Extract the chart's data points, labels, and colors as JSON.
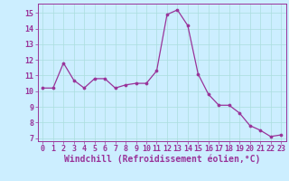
{
  "x": [
    0,
    1,
    2,
    3,
    4,
    5,
    6,
    7,
    8,
    9,
    10,
    11,
    12,
    13,
    14,
    15,
    16,
    17,
    18,
    19,
    20,
    21,
    22,
    23
  ],
  "y": [
    10.2,
    10.2,
    11.8,
    10.7,
    10.2,
    10.8,
    10.8,
    10.2,
    10.4,
    10.5,
    10.5,
    11.3,
    14.9,
    15.2,
    14.2,
    11.1,
    9.8,
    9.1,
    9.1,
    8.6,
    7.8,
    7.5,
    7.1,
    7.2
  ],
  "line_color": "#993399",
  "marker_color": "#993399",
  "bg_color": "#cceeff",
  "grid_color": "#aadddd",
  "xlabel": "Windchill (Refroidissement éolien,°C)",
  "xlim": [
    -0.5,
    23.5
  ],
  "ylim": [
    6.8,
    15.6
  ],
  "yticks": [
    7,
    8,
    9,
    10,
    11,
    12,
    13,
    14,
    15
  ],
  "xticks": [
    0,
    1,
    2,
    3,
    4,
    5,
    6,
    7,
    8,
    9,
    10,
    11,
    12,
    13,
    14,
    15,
    16,
    17,
    18,
    19,
    20,
    21,
    22,
    23
  ],
  "tick_label_color": "#993399",
  "axis_color": "#993399",
  "label_fontsize": 7,
  "tick_fontsize": 6
}
